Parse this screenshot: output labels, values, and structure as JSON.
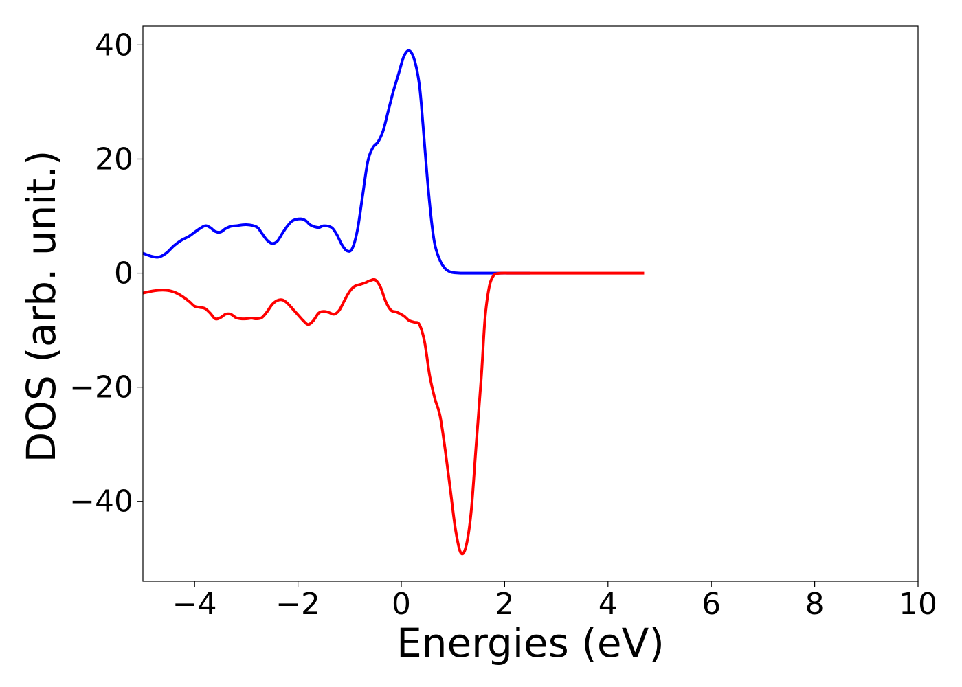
{
  "chart_data": {
    "type": "line",
    "title": "",
    "xlabel": "Energies (eV)",
    "ylabel": "DOS (arb. unit.)",
    "xlim": [
      -5,
      10
    ],
    "ylim": [
      -54,
      43.3
    ],
    "xticks": [
      -4,
      -2,
      0,
      2,
      4,
      6,
      8,
      10
    ],
    "xtick_labels": [
      "−4",
      "−2",
      "0",
      "2",
      "4",
      "6",
      "8",
      "10"
    ],
    "yticks": [
      40,
      20,
      0,
      -20,
      -40
    ],
    "ytick_labels": [
      "40",
      "20",
      "0",
      "−20",
      "−40"
    ],
    "grid": false,
    "series": [
      {
        "color": "#0000ff",
        "x": [
          -5.0,
          -4.85,
          -4.7,
          -4.55,
          -4.4,
          -4.25,
          -4.1,
          -3.95,
          -3.8,
          -3.7,
          -3.6,
          -3.5,
          -3.4,
          -3.3,
          -3.2,
          -3.0,
          -2.8,
          -2.7,
          -2.6,
          -2.5,
          -2.4,
          -2.3,
          -2.2,
          -2.1,
          -1.95,
          -1.85,
          -1.75,
          -1.6,
          -1.5,
          -1.35,
          -1.25,
          -1.15,
          -1.05,
          -0.95,
          -0.85,
          -0.75,
          -0.65,
          -0.55,
          -0.45,
          -0.35,
          -0.25,
          -0.15,
          -0.05,
          0.05,
          0.15,
          0.25,
          0.35,
          0.42,
          0.5,
          0.58,
          0.65,
          0.75,
          0.85,
          0.95,
          1.05,
          1.15,
          1.3,
          1.6,
          2.0,
          2.5
        ],
        "values": [
          3.5,
          3.0,
          2.8,
          3.5,
          4.8,
          5.8,
          6.5,
          7.5,
          8.3,
          8.0,
          7.3,
          7.2,
          7.8,
          8.2,
          8.3,
          8.5,
          8.1,
          7.0,
          5.8,
          5.2,
          5.6,
          7.0,
          8.3,
          9.2,
          9.5,
          9.2,
          8.4,
          8.0,
          8.3,
          8.0,
          6.8,
          5.0,
          3.9,
          4.3,
          7.5,
          13.5,
          19.5,
          22.0,
          23.0,
          25.0,
          28.5,
          32.0,
          35.0,
          38.0,
          39.0,
          37.5,
          33.0,
          26.0,
          17.0,
          9.5,
          5.0,
          2.2,
          0.8,
          0.2,
          0.05,
          0.0,
          0.0,
          0.0,
          0.0,
          0.0
        ]
      },
      {
        "color": "#ff0000",
        "x": [
          -5.0,
          -4.85,
          -4.7,
          -4.55,
          -4.4,
          -4.25,
          -4.1,
          -4.0,
          -3.9,
          -3.8,
          -3.7,
          -3.6,
          -3.5,
          -3.4,
          -3.3,
          -3.2,
          -3.1,
          -3.0,
          -2.9,
          -2.8,
          -2.7,
          -2.6,
          -2.5,
          -2.4,
          -2.3,
          -2.2,
          -2.1,
          -2.0,
          -1.9,
          -1.8,
          -1.7,
          -1.6,
          -1.5,
          -1.4,
          -1.3,
          -1.2,
          -1.1,
          -1.0,
          -0.9,
          -0.8,
          -0.7,
          -0.6,
          -0.5,
          -0.4,
          -0.3,
          -0.2,
          -0.1,
          -0.05,
          0.05,
          0.15,
          0.25,
          0.35,
          0.45,
          0.55,
          0.65,
          0.75,
          0.85,
          0.95,
          1.05,
          1.15,
          1.25,
          1.35,
          1.45,
          1.55,
          1.62,
          1.7,
          1.78,
          1.85,
          1.95,
          2.05,
          2.15,
          2.25,
          2.35,
          2.5,
          2.8,
          3.5,
          4.2,
          4.7
        ],
        "values": [
          -3.5,
          -3.2,
          -3.0,
          -3.0,
          -3.3,
          -4.0,
          -5.0,
          -5.8,
          -6.0,
          -6.2,
          -7.0,
          -8.0,
          -7.8,
          -7.2,
          -7.2,
          -7.8,
          -8.0,
          -8.0,
          -7.9,
          -8.0,
          -7.8,
          -6.8,
          -5.5,
          -4.8,
          -4.7,
          -5.3,
          -6.3,
          -7.3,
          -8.3,
          -9.0,
          -8.3,
          -7.0,
          -6.7,
          -6.9,
          -7.2,
          -6.5,
          -4.8,
          -3.2,
          -2.3,
          -2.0,
          -1.7,
          -1.3,
          -1.2,
          -2.5,
          -5.0,
          -6.5,
          -6.8,
          -7.0,
          -7.5,
          -8.3,
          -8.6,
          -9.0,
          -12.0,
          -18.0,
          -22.0,
          -25.0,
          -31.0,
          -38.0,
          -45.0,
          -49.0,
          -48.0,
          -42.0,
          -30.0,
          -18.0,
          -8.0,
          -2.5,
          -0.5,
          -0.1,
          0.0,
          0.0,
          0.0,
          0.0,
          0.0,
          0.0,
          0.0,
          0.0,
          0.0,
          0.0
        ]
      }
    ]
  }
}
